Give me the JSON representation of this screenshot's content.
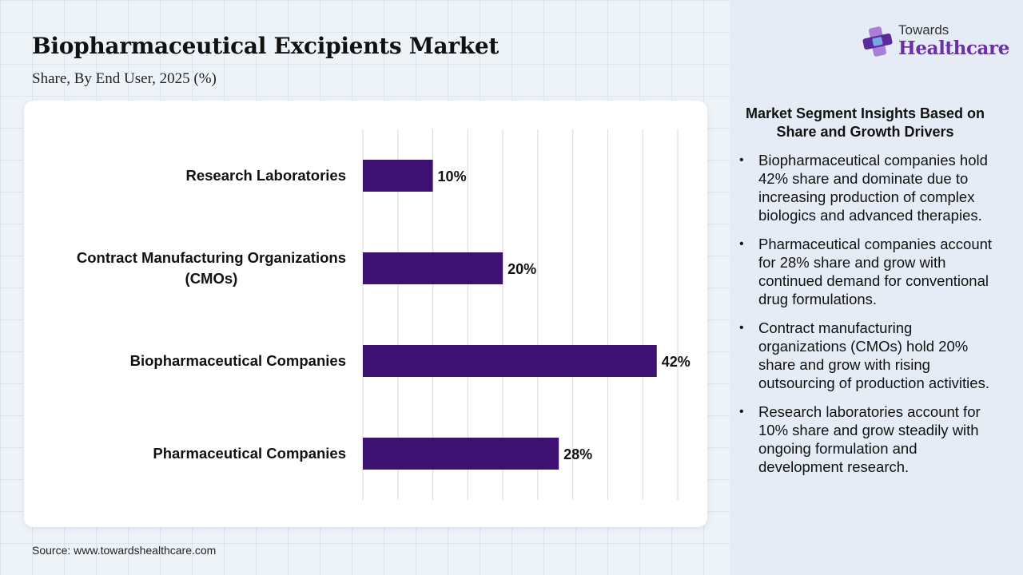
{
  "header": {
    "title": "Biopharmaceutical Excipients Market",
    "subtitle": "Share, By End User, 2025 (%)"
  },
  "logo": {
    "line1": "Towards",
    "line2": "Healthcare",
    "colors": {
      "plus_dark": "#5b2a9e",
      "plus_light": "#a97fd6",
      "plus_blue": "#7aa6e6"
    }
  },
  "chart_data": {
    "type": "bar",
    "orientation": "horizontal",
    "categories": [
      "Research Laboratories",
      "Contract Manufacturing Organizations (CMOs)",
      "Biopharmaceutical Companies",
      "Pharmaceutical Companies"
    ],
    "category_lines": [
      [
        "Research Laboratories"
      ],
      [
        "Contract Manufacturing Organizations",
        "(CMOs)"
      ],
      [
        "Biopharmaceutical Companies"
      ],
      [
        "Pharmaceutical Companies"
      ]
    ],
    "values": [
      10,
      20,
      42,
      28
    ],
    "data_labels": [
      "10%",
      "20%",
      "42%",
      "28%"
    ],
    "xlim": [
      0,
      45
    ],
    "grid_step": 5,
    "grid": true,
    "bar_color": "#3d1172"
  },
  "insights": {
    "title": "Market Segment Insights Based on Share and Growth Drivers",
    "bullet_char": "•",
    "items": [
      "Biopharmaceutical companies hold 42% share and dominate due to increasing production of complex biologics and advanced therapies.",
      "Pharmaceutical companies account for 28% share and grow with continued demand for conventional drug formulations.",
      "Contract manufacturing organizations (CMOs) hold 20% share and grow with rising outsourcing of production activities.",
      "Research laboratories account for 10% share and grow steadily with ongoing formulation and development research."
    ]
  },
  "footer": {
    "source": "Source: www.towardshealthcare.com"
  }
}
